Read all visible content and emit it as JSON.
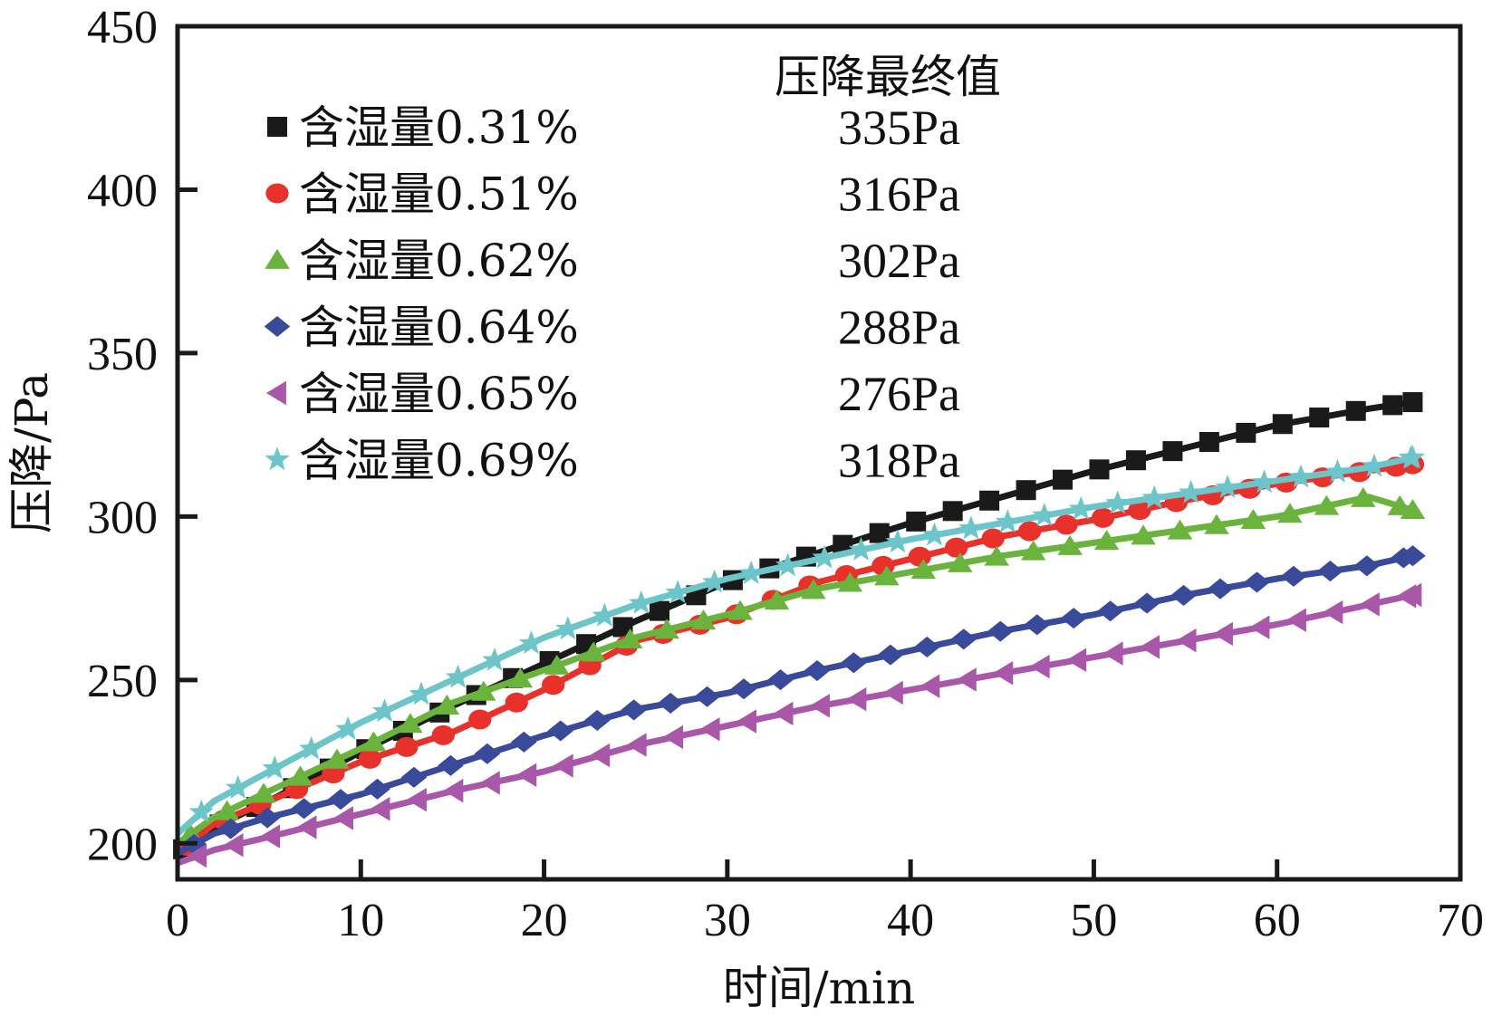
{
  "chart_data": {
    "type": "line",
    "title": "",
    "xlabel": "时间/min",
    "ylabel": "压降/Pa",
    "xlim": [
      0,
      70
    ],
    "ylim": [
      189,
      450
    ],
    "x_ticks": [
      0,
      10,
      20,
      30,
      40,
      50,
      60,
      70
    ],
    "x_tick_labels": [
      "0",
      "10",
      "20",
      "30",
      "40",
      "50",
      "60",
      "70"
    ],
    "y_ticks": [
      200,
      250,
      300,
      350,
      400,
      450
    ],
    "y_tick_labels": [
      "200",
      "250",
      "300",
      "350",
      "400",
      "450"
    ],
    "grid": false,
    "legend_position": "top-left",
    "annotation_header": "压降最终值",
    "x": [
      0,
      2,
      5,
      10,
      15,
      20,
      25,
      30,
      35,
      40,
      45,
      50,
      55,
      60,
      65,
      67.4
    ],
    "series": [
      {
        "name": "含湿量0.31%",
        "final_label": "335Pa",
        "marker": "square",
        "color": "#1a1a1a",
        "values": [
          197,
          205,
          213,
          228,
          242,
          255,
          268,
          280,
          289,
          298,
          306,
          314,
          321,
          328,
          333,
          335
        ]
      },
      {
        "name": "含湿量0.51%",
        "final_label": "316Pa",
        "marker": "circle",
        "color": "#e8312a",
        "values": [
          197,
          206,
          213,
          225,
          234,
          247,
          262,
          269,
          280,
          287,
          294,
          299,
          305,
          310,
          314,
          316
        ]
      },
      {
        "name": "含湿量0.62%",
        "final_label": "302Pa",
        "marker": "triangle-up",
        "color": "#6ab43e",
        "values": [
          200,
          208,
          216,
          229,
          243,
          253,
          263,
          270,
          278,
          283,
          288,
          292,
          296,
          300,
          306,
          302
        ]
      },
      {
        "name": "含湿量0.64%",
        "final_label": "288Pa",
        "marker": "diamond",
        "color": "#3a4a9a",
        "values": [
          197,
          203,
          208,
          215,
          224,
          233,
          241,
          246,
          253,
          259,
          265,
          270,
          276,
          281,
          285,
          288
        ]
      },
      {
        "name": "含湿量0.65%",
        "final_label": "276Pa",
        "marker": "triangle-left",
        "color": "#a957a8",
        "values": [
          194,
          198,
          202,
          209,
          216,
          222,
          230,
          236,
          242,
          247,
          252,
          257,
          262,
          267,
          273,
          276
        ]
      },
      {
        "name": "含湿量0.69%",
        "final_label": "318Pa",
        "marker": "star",
        "color": "#6cc5c9",
        "values": [
          203,
          213,
          222,
          237,
          250,
          263,
          273,
          281,
          287,
          293,
          298,
          303,
          307,
          311,
          315,
          318
        ]
      }
    ]
  }
}
